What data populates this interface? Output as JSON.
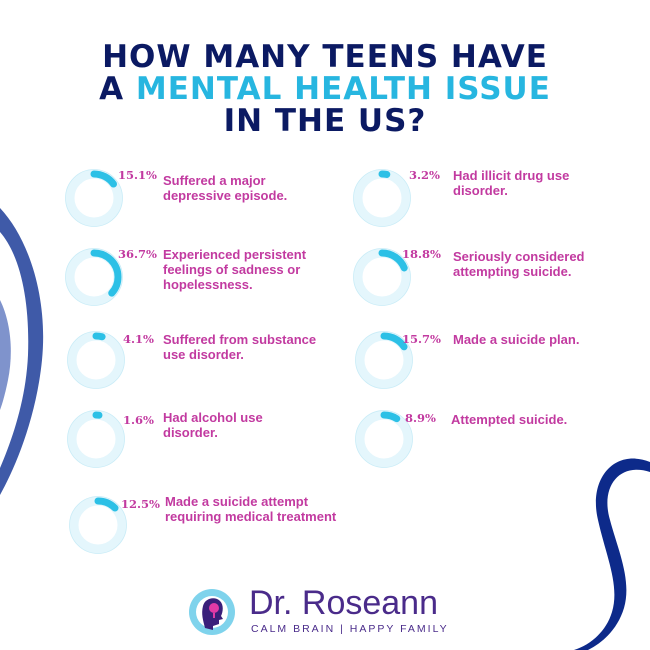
{
  "title": {
    "line1": "HOW MANY TEENS HAVE",
    "line2_prefix": "A ",
    "line2_accent": "MENTAL HEALTH ISSUE",
    "line3": "IN THE US?"
  },
  "stats": [
    {
      "percent": 15.1,
      "percent_label": "15.1%",
      "label": "Suffered a major depressive episode."
    },
    {
      "percent": 36.7,
      "percent_label": "36.7%",
      "label": "Experienced persistent feelings of sadness or hopelessness."
    },
    {
      "percent": 4.1,
      "percent_label": "4.1%",
      "label": "Suffered from substance use disorder."
    },
    {
      "percent": 1.6,
      "percent_label": "1.6%",
      "label": "Had alcohol use disorder."
    },
    {
      "percent": 12.5,
      "percent_label": "12.5%",
      "label": "Made a suicide attempt requiring medical treatment"
    },
    {
      "percent": 3.2,
      "percent_label": "3.2%",
      "label": "Had illicit drug use disorder."
    },
    {
      "percent": 18.8,
      "percent_label": "18.8%",
      "label": "Seriously considered attempting suicide."
    },
    {
      "percent": 15.7,
      "percent_label": "15.7%",
      "label": "Made a suicide plan."
    },
    {
      "percent": 8.9,
      "percent_label": "8.9%",
      "label": "Attempted suicide."
    }
  ],
  "logo": {
    "name": "Dr. Roseann",
    "tagline": "CALM BRAIN | HAPPY FAMILY"
  },
  "colors": {
    "title": "#0b1a63",
    "accent": "#27b6e0",
    "ring_track": "#e4f6fc",
    "ring_inner": "#ffffff",
    "ring_fill": "#2cc0e6",
    "text": "#c23aa0",
    "swoosh_left": "#3f5aa8",
    "swoosh_right": "#0d2a8a",
    "logo_text": "#4a2b8a"
  }
}
